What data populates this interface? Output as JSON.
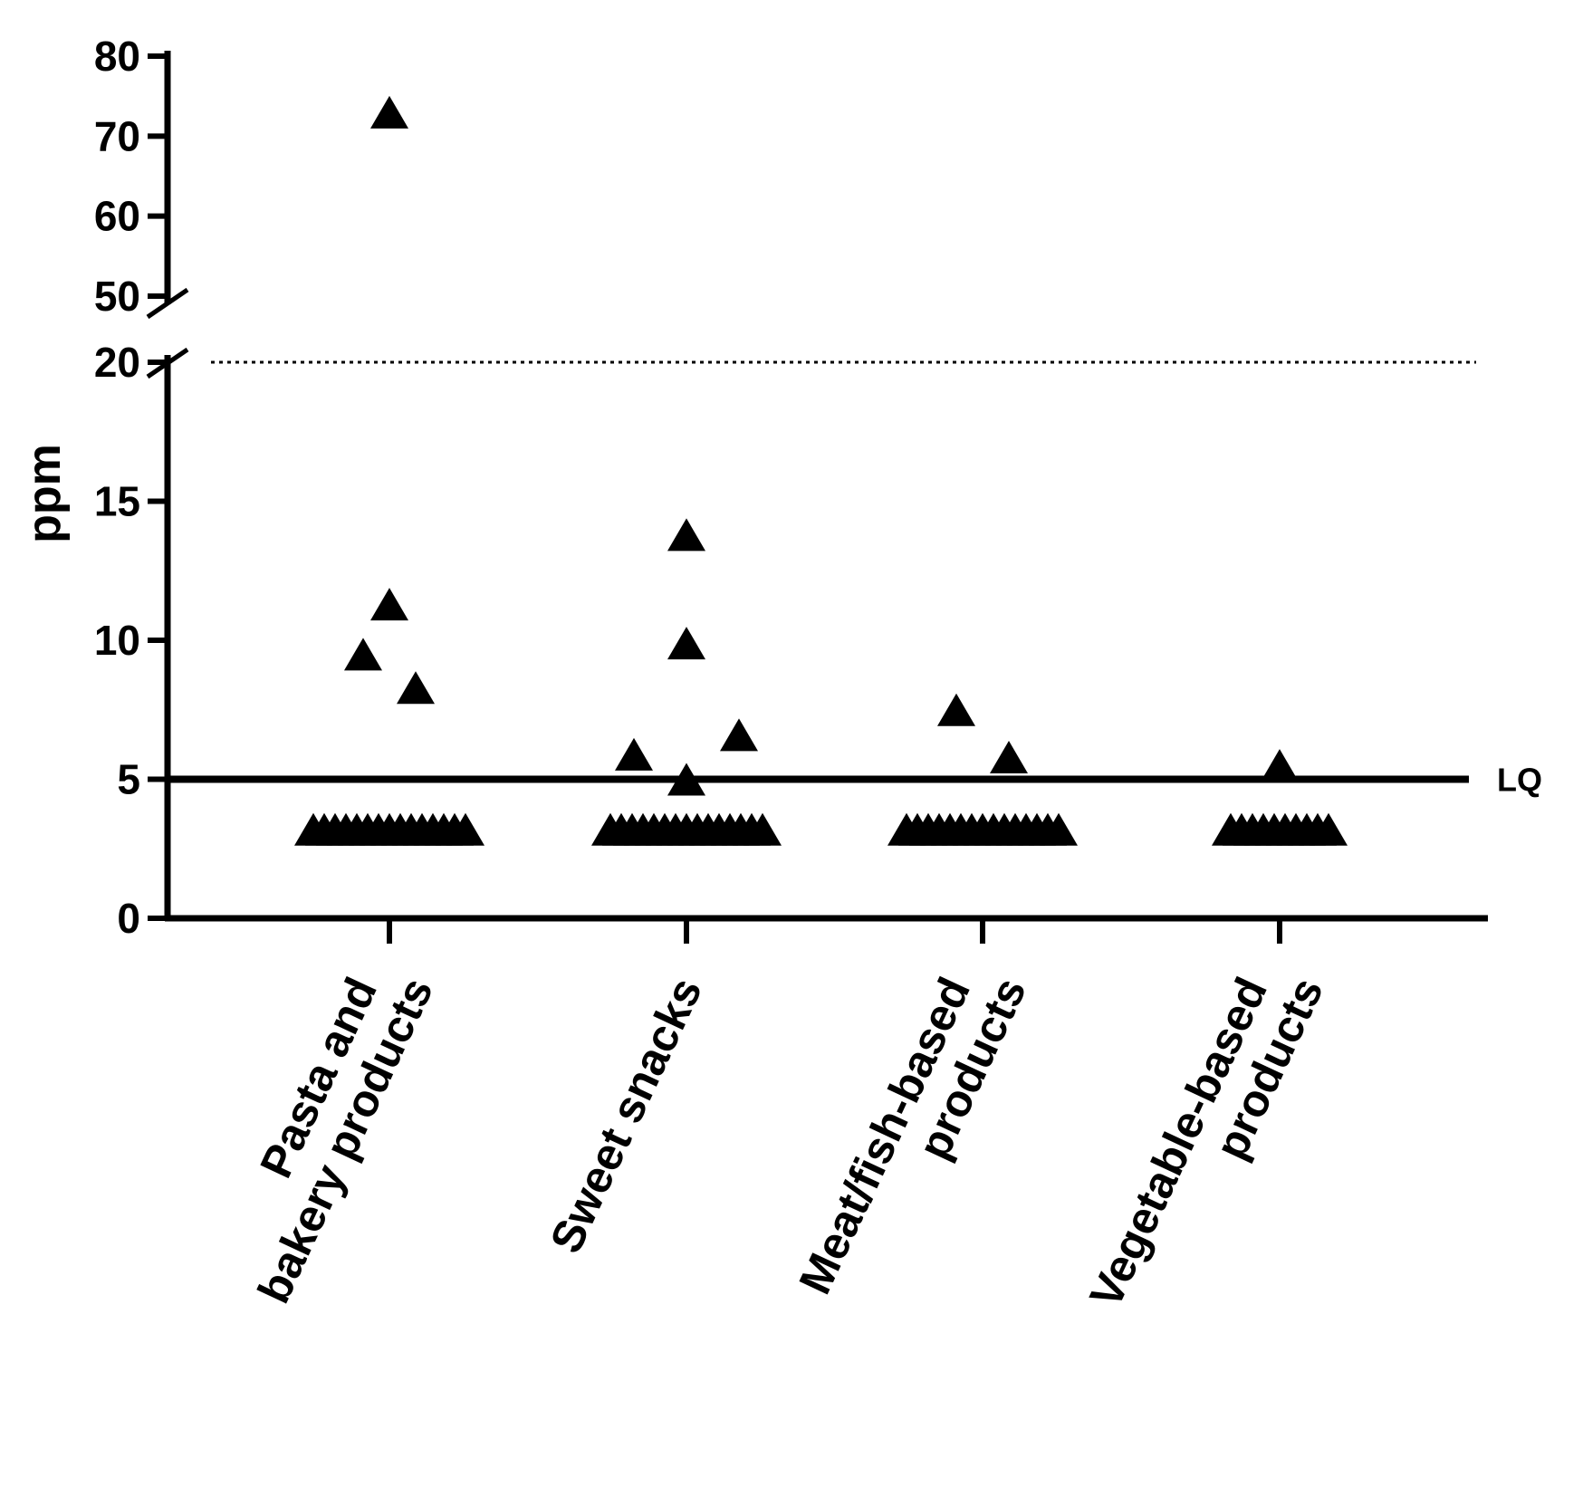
{
  "chart_data": {
    "type": "scatter",
    "title": "",
    "ylabel": "ppm",
    "xlabel": "",
    "ylim_lower": [
      0,
      20
    ],
    "ylim_upper": [
      50,
      80
    ],
    "axis_break": [
      20,
      50
    ],
    "yticks_lower": [
      0,
      5,
      10,
      15,
      20
    ],
    "yticks_upper": [
      50,
      60,
      70,
      80
    ],
    "reference_lines": [
      {
        "name": "LQ",
        "label": "LQ",
        "value": 5,
        "style": "solid"
      },
      {
        "name": "limit",
        "label": "",
        "value": 20,
        "style": "dotted"
      }
    ],
    "categories": [
      {
        "label_lines": [
          "Pasta and",
          "bakery products"
        ]
      },
      {
        "label_lines": [
          "Sweet snacks"
        ]
      },
      {
        "label_lines": [
          "Meat/fish-based",
          "products"
        ]
      },
      {
        "label_lines": [
          "Vegetable-based",
          "products"
        ]
      }
    ],
    "points": [
      {
        "category": 0,
        "offset": 0,
        "value": 73
      },
      {
        "category": 0,
        "offset": 0,
        "value": 11.3
      },
      {
        "category": 0,
        "offset": -1,
        "value": 9.5
      },
      {
        "category": 0,
        "offset": 1,
        "value": 8.3
      },
      {
        "category": 1,
        "offset": 0,
        "value": 13.8
      },
      {
        "category": 1,
        "offset": 0,
        "value": 9.9
      },
      {
        "category": 1,
        "offset": 2,
        "value": 6.6
      },
      {
        "category": 1,
        "offset": -2,
        "value": 5.9
      },
      {
        "category": 1,
        "offset": 0,
        "value": 5.0
      },
      {
        "category": 2,
        "offset": -1,
        "value": 7.5
      },
      {
        "category": 2,
        "offset": 1,
        "value": 5.8
      },
      {
        "category": 3,
        "offset": 0,
        "value": 5.5
      }
    ],
    "below_lq_clusters": [
      {
        "category": 0,
        "value": 3.2,
        "count": 15
      },
      {
        "category": 1,
        "value": 3.2,
        "count": 15
      },
      {
        "category": 2,
        "value": 3.2,
        "count": 15
      },
      {
        "category": 3,
        "value": 3.2,
        "count": 10
      }
    ],
    "marker": "triangle",
    "color": "#000000"
  }
}
